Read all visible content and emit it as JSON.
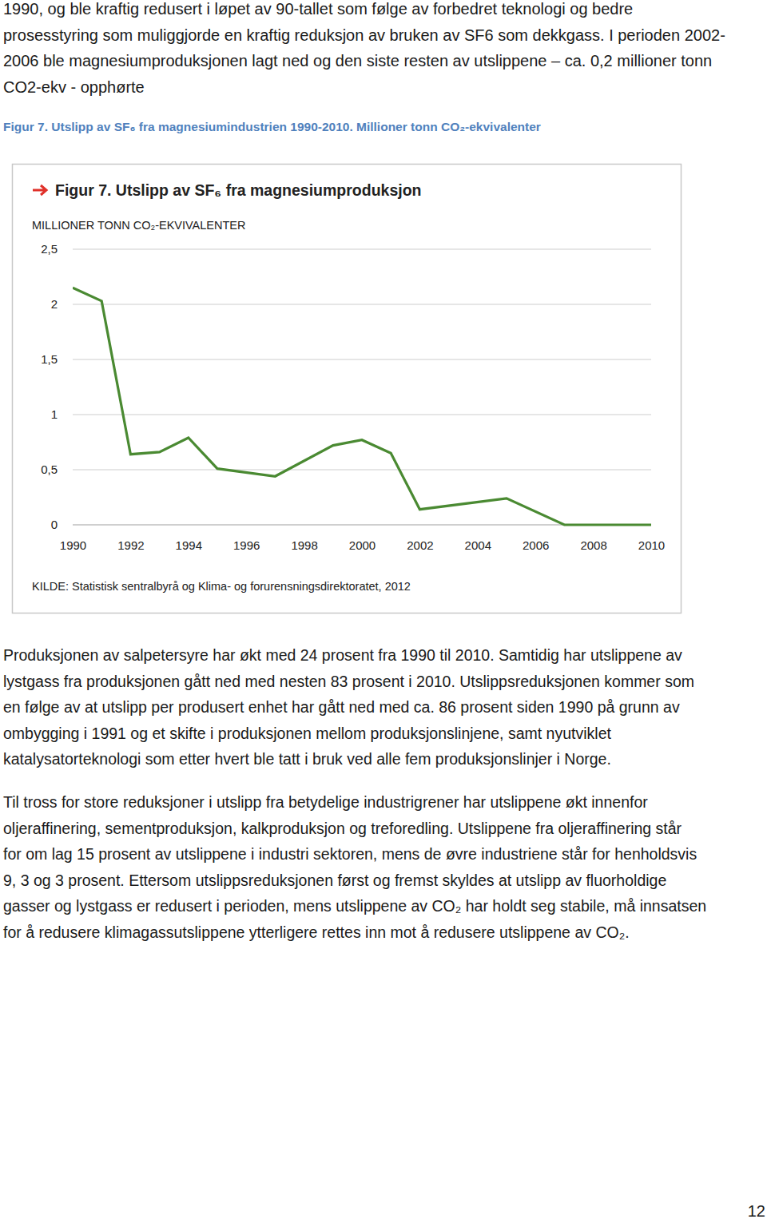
{
  "document": {
    "intro_lines": [
      "1990, og ble kraftig redusert i løpet av 90-tallet som følge av forbedret teknologi og bedre",
      "prosesstyring som muliggjorde en kraftig reduksjon av bruken av SF6 som dekkgass. I perioden 2002-",
      "2006 ble magnesiumproduksjonen lagt ned og den siste resten av utslippene – ca. 0,2 millioner tonn",
      "CO2-ekv - opphørte"
    ],
    "caption": "Figur 7. Utslipp av SF₆ fra magnesiumindustrien 1990-2010. Millioner tonn CO₂-ekvivalenter",
    "paragraphs": [
      [
        "Produksjonen av salpetersyre har økt med 24 prosent fra 1990 til 2010. Samtidig har utslippene av",
        "lystgass fra produksjonen gått ned med nesten 83 prosent i 2010. Utslippsreduksjonen kommer som",
        "en følge av at utslipp per produsert enhet har gått ned med ca. 86 prosent siden 1990 på grunn av",
        "ombygging i 1991 og et skifte i produksjonen mellom produksjonslinjene, samt nyutviklet",
        "katalysatorteknologi som etter hvert ble tatt i bruk ved alle fem produksjonslinjer i Norge."
      ],
      [
        "Til tross for store reduksjoner i utslipp fra betydelige industrigrener har utslippene økt innenfor",
        "oljeraffinering, sementproduksjon, kalkproduksjon og treforedling. Utslippene fra oljeraffinering står",
        "for om lag 15 prosent av utslippene i industri sektoren, mens de øvre industriene står for henholdsvis",
        "9, 3 og 3 prosent. Ettersom utslippsreduksjonen først og fremst skyldes at utslipp av fluorholdige",
        "gasser og lystgass er redusert i perioden, mens utslippene av CO₂ har holdt seg stabile, må innsatsen",
        "for å redusere klimagassutslippene ytterligere rettes inn mot å redusere utslippene av CO₂."
      ]
    ],
    "page_number": "12"
  },
  "chart_data": {
    "type": "line",
    "title": "Figur 7. Utslipp av SF₆ fra magnesiumproduksjon",
    "y_label": "MILLIONER TONN CO₂-EKVIVALENTER",
    "source": "KILDE: Statistisk sentralbyrå og Klima- og forurensningsdirektoratet, 2012",
    "x": [
      1990,
      1991,
      1992,
      1993,
      1994,
      1995,
      1997,
      1999,
      2000,
      2001,
      2002,
      2005,
      2007,
      2010
    ],
    "values": [
      2.15,
      2.03,
      0.64,
      0.66,
      0.79,
      0.51,
      0.44,
      0.72,
      0.77,
      0.65,
      0.14,
      0.24,
      0,
      0
    ],
    "color": "#4a8a32",
    "xlim": [
      1990,
      2010
    ],
    "xticks": [
      1990,
      1992,
      1994,
      1996,
      1998,
      2000,
      2002,
      2004,
      2006,
      2008,
      2010
    ],
    "ylim": [
      0,
      2.5
    ],
    "yticks": [
      0,
      {
        "value": 0.5,
        "label": "0,5"
      },
      1,
      {
        "value": 1.5,
        "label": "1,5"
      },
      2,
      {
        "value": 2.5,
        "label": "2,5"
      }
    ],
    "grid": true
  }
}
